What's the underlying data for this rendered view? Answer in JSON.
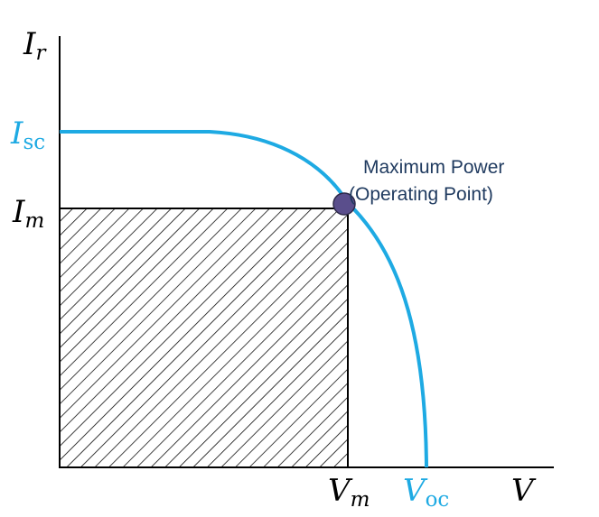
{
  "colors": {
    "curve": "#1eaae3",
    "axis": "#000000",
    "point_fill": "#5a4e8c",
    "hatch": "#000000",
    "annotation": "#1f3a5f"
  },
  "labels": {
    "y_axis": {
      "main": "I",
      "sub": "r"
    },
    "x_axis": {
      "main": "V"
    },
    "isc": {
      "main": "I",
      "sub": "sc"
    },
    "im": {
      "main": "I",
      "sub": "m"
    },
    "vm": {
      "main": "V",
      "sub": "m"
    },
    "voc": {
      "main": "V",
      "sub": "oc"
    }
  },
  "annotation": {
    "line1": "Maximum Power",
    "line2": "(Operating Point)"
  },
  "hatch_style": "diagonal"
}
